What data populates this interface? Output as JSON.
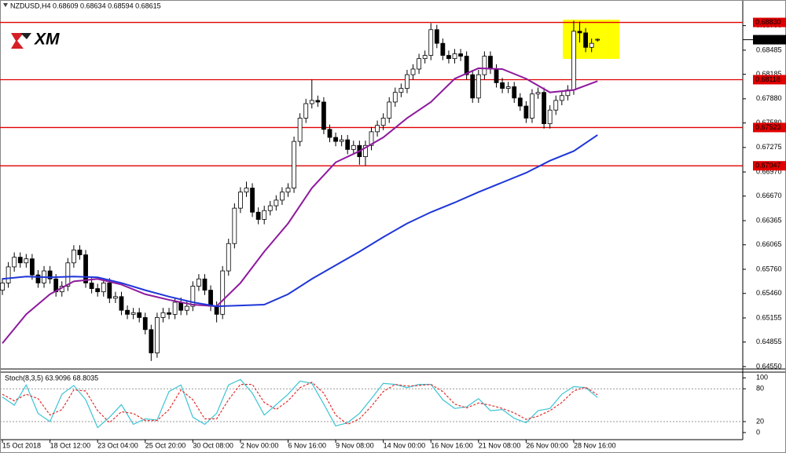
{
  "chart_data": {
    "type": "candlestick",
    "title": "NZDUSD,H4 0.68609 0.68634 0.68594 0.68615",
    "watermark": "XM",
    "up_color": "#ffffff",
    "down_color": "#000000",
    "candle_stroke": "#000000",
    "ohlc": [
      [
        0.655,
        0.6565,
        0.6544,
        0.6559
      ],
      [
        0.6559,
        0.6585,
        0.6553,
        0.6579
      ],
      [
        0.6579,
        0.6597,
        0.6573,
        0.6591
      ],
      [
        0.6591,
        0.6597,
        0.6578,
        0.6584
      ],
      [
        0.6584,
        0.6595,
        0.6578,
        0.6589
      ],
      [
        0.6589,
        0.6595,
        0.6563,
        0.6569
      ],
      [
        0.6569,
        0.6575,
        0.6553,
        0.6559
      ],
      [
        0.6559,
        0.658,
        0.6553,
        0.6574
      ],
      [
        0.6574,
        0.658,
        0.6558,
        0.6564
      ],
      [
        0.6564,
        0.657,
        0.6542,
        0.6548
      ],
      [
        0.6548,
        0.6561,
        0.6542,
        0.6555
      ],
      [
        0.6555,
        0.659,
        0.6549,
        0.6584
      ],
      [
        0.6584,
        0.6606,
        0.6578,
        0.66
      ],
      [
        0.66,
        0.6606,
        0.6588,
        0.6594
      ],
      [
        0.6594,
        0.66,
        0.6553,
        0.6559
      ],
      [
        0.6559,
        0.6565,
        0.6546,
        0.6552
      ],
      [
        0.6552,
        0.6558,
        0.6542,
        0.6548
      ],
      [
        0.6548,
        0.6565,
        0.6542,
        0.6559
      ],
      [
        0.6559,
        0.6565,
        0.6534,
        0.654
      ],
      [
        0.654,
        0.6548,
        0.6534,
        0.6542
      ],
      [
        0.6542,
        0.6548,
        0.6519,
        0.6525
      ],
      [
        0.6525,
        0.6531,
        0.6514,
        0.652
      ],
      [
        0.652,
        0.6528,
        0.6514,
        0.6522
      ],
      [
        0.6522,
        0.6528,
        0.651,
        0.6516
      ],
      [
        0.6516,
        0.6522,
        0.6495,
        0.6501
      ],
      [
        0.6501,
        0.6507,
        0.6462,
        0.6472
      ],
      [
        0.6472,
        0.6522,
        0.6466,
        0.6516
      ],
      [
        0.6516,
        0.6528,
        0.651,
        0.6522
      ],
      [
        0.6522,
        0.6528,
        0.6514,
        0.652
      ],
      [
        0.652,
        0.6541,
        0.6514,
        0.6535
      ],
      [
        0.6535,
        0.6541,
        0.6519,
        0.6525
      ],
      [
        0.6525,
        0.6536,
        0.6519,
        0.653
      ],
      [
        0.653,
        0.6561,
        0.6524,
        0.6555
      ],
      [
        0.6555,
        0.657,
        0.6549,
        0.6564
      ],
      [
        0.6564,
        0.657,
        0.6544,
        0.655
      ],
      [
        0.655,
        0.6556,
        0.6524,
        0.653
      ],
      [
        0.653,
        0.6536,
        0.651,
        0.652
      ],
      [
        0.652,
        0.658,
        0.6514,
        0.6574
      ],
      [
        0.6574,
        0.6614,
        0.6568,
        0.6608
      ],
      [
        0.6608,
        0.6658,
        0.6602,
        0.6652
      ],
      [
        0.6652,
        0.6678,
        0.6646,
        0.6672
      ],
      [
        0.6672,
        0.6685,
        0.6666,
        0.6677
      ],
      [
        0.6677,
        0.6683,
        0.6641,
        0.6647
      ],
      [
        0.6647,
        0.6653,
        0.6632,
        0.6638
      ],
      [
        0.6638,
        0.6655,
        0.6632,
        0.6649
      ],
      [
        0.6649,
        0.6661,
        0.6643,
        0.6655
      ],
      [
        0.6655,
        0.6668,
        0.6649,
        0.6662
      ],
      [
        0.6662,
        0.6678,
        0.6656,
        0.6672
      ],
      [
        0.6672,
        0.6683,
        0.6666,
        0.6677
      ],
      [
        0.6677,
        0.6741,
        0.6671,
        0.6735
      ],
      [
        0.6735,
        0.677,
        0.6729,
        0.6764
      ],
      [
        0.6764,
        0.6788,
        0.6758,
        0.6782
      ],
      [
        0.6782,
        0.6812,
        0.6776,
        0.6786
      ],
      [
        0.6786,
        0.6792,
        0.6778,
        0.6784
      ],
      [
        0.6784,
        0.679,
        0.6744,
        0.675
      ],
      [
        0.675,
        0.6756,
        0.6734,
        0.674
      ],
      [
        0.674,
        0.6746,
        0.6729,
        0.6735
      ],
      [
        0.6735,
        0.6743,
        0.6729,
        0.6737
      ],
      [
        0.6737,
        0.6743,
        0.6719,
        0.6725
      ],
      [
        0.6725,
        0.6736,
        0.6719,
        0.673
      ],
      [
        0.673,
        0.6736,
        0.6706,
        0.6716
      ],
      [
        0.6716,
        0.6736,
        0.6705,
        0.673
      ],
      [
        0.673,
        0.6753,
        0.6724,
        0.6747
      ],
      [
        0.6747,
        0.6761,
        0.6741,
        0.6755
      ],
      [
        0.6755,
        0.677,
        0.6749,
        0.6764
      ],
      [
        0.6764,
        0.679,
        0.6758,
        0.6784
      ],
      [
        0.6784,
        0.6802,
        0.6778,
        0.6796
      ],
      [
        0.6796,
        0.6807,
        0.679,
        0.6801
      ],
      [
        0.6801,
        0.6824,
        0.6795,
        0.6818
      ],
      [
        0.6818,
        0.6831,
        0.6812,
        0.6825
      ],
      [
        0.6825,
        0.6844,
        0.6819,
        0.6838
      ],
      [
        0.6838,
        0.6848,
        0.6832,
        0.6842
      ],
      [
        0.6842,
        0.6882,
        0.6836,
        0.6874
      ],
      [
        0.6874,
        0.688,
        0.6851,
        0.6857
      ],
      [
        0.6857,
        0.6863,
        0.6836,
        0.6842
      ],
      [
        0.6842,
        0.6848,
        0.6832,
        0.6838
      ],
      [
        0.6838,
        0.685,
        0.6832,
        0.6844
      ],
      [
        0.6844,
        0.685,
        0.6835,
        0.6841
      ],
      [
        0.6841,
        0.6847,
        0.6812,
        0.6818
      ],
      [
        0.6818,
        0.6824,
        0.6783,
        0.6789
      ],
      [
        0.6789,
        0.6824,
        0.6783,
        0.6818
      ],
      [
        0.6818,
        0.6847,
        0.6812,
        0.6841
      ],
      [
        0.6841,
        0.6847,
        0.6819,
        0.6825
      ],
      [
        0.6825,
        0.6831,
        0.6802,
        0.6808
      ],
      [
        0.6808,
        0.6814,
        0.6795,
        0.6801
      ],
      [
        0.6801,
        0.6809,
        0.6795,
        0.6803
      ],
      [
        0.6803,
        0.6809,
        0.6783,
        0.6789
      ],
      [
        0.6789,
        0.6795,
        0.6773,
        0.6779
      ],
      [
        0.6779,
        0.6785,
        0.6758,
        0.6764
      ],
      [
        0.6764,
        0.68,
        0.6758,
        0.6794
      ],
      [
        0.6794,
        0.6802,
        0.6788,
        0.6796
      ],
      [
        0.6796,
        0.6802,
        0.6751,
        0.6757
      ],
      [
        0.6757,
        0.678,
        0.6751,
        0.6774
      ],
      [
        0.6774,
        0.6792,
        0.6768,
        0.6786
      ],
      [
        0.6786,
        0.6798,
        0.678,
        0.6792
      ],
      [
        0.6792,
        0.6805,
        0.6786,
        0.6799
      ],
      [
        0.6799,
        0.6885,
        0.6793,
        0.6872
      ],
      [
        0.6872,
        0.6884,
        0.6858,
        0.687
      ],
      [
        0.687,
        0.6876,
        0.6846,
        0.6852
      ],
      [
        0.6852,
        0.6863,
        0.6846,
        0.6857
      ],
      [
        0.6861,
        0.6863,
        0.6859,
        0.6862
      ]
    ],
    "series": [
      {
        "color": "#8e1a9e",
        "x": [
          0,
          4,
          8,
          12,
          16,
          20,
          24,
          28,
          32,
          36,
          40,
          44,
          48,
          52,
          56,
          60,
          64,
          68,
          72,
          76,
          80,
          84,
          88,
          92,
          96,
          100
        ],
        "values": [
          0.6484,
          0.652,
          0.6545,
          0.6561,
          0.6564,
          0.6557,
          0.6545,
          0.6538,
          0.6532,
          0.653,
          0.6559,
          0.6598,
          0.6633,
          0.6677,
          0.6709,
          0.6723,
          0.674,
          0.6764,
          0.6784,
          0.6813,
          0.6826,
          0.6825,
          0.6813,
          0.6796,
          0.6799,
          0.681
        ]
      },
      {
        "color": "#1e36d8",
        "x": [
          0,
          4,
          8,
          12,
          16,
          20,
          24,
          28,
          32,
          36,
          40,
          44,
          48,
          52,
          56,
          60,
          64,
          68,
          72,
          76,
          80,
          84,
          88,
          92,
          96,
          100
        ],
        "values": [
          0.6564,
          0.6567,
          0.6566,
          0.6567,
          0.6566,
          0.6559,
          0.655,
          0.6542,
          0.6535,
          0.653,
          0.6531,
          0.6532,
          0.6545,
          0.6564,
          0.6581,
          0.6598,
          0.6616,
          0.6633,
          0.6647,
          0.6659,
          0.6672,
          0.6684,
          0.6696,
          0.6711,
          0.6723,
          0.6743
        ]
      }
    ],
    "levels": [
      {
        "value": 0.6883,
        "label": "0.68830"
      },
      {
        "value": 0.68118,
        "label": "0.68118"
      },
      {
        "value": 0.67523,
        "label": "0.67523"
      },
      {
        "value": 0.67047,
        "label": "0.67047"
      }
    ],
    "level_color": "#e00000",
    "last_price": {
      "value": 0.68615,
      "label": "0.68615"
    },
    "xlim": [
      -0.4,
      124.4
    ],
    "xticks": [
      {
        "value": 0,
        "label": "15 Oct 2018"
      },
      {
        "value": 8,
        "label": "18 Oct 12:00"
      },
      {
        "value": 16,
        "label": "23 Oct 04:00"
      },
      {
        "value": 24,
        "label": "25 Oct 20:00"
      },
      {
        "value": 32,
        "label": "30 Oct 08:00"
      },
      {
        "value": 40,
        "label": "2 Nov 00:00"
      },
      {
        "value": 48,
        "label": "6 Nov 16:00"
      },
      {
        "value": 56,
        "label": "9 Nov 08:00"
      },
      {
        "value": 64,
        "label": "14 Nov 00:00"
      },
      {
        "value": 72,
        "label": "16 Nov 16:00"
      },
      {
        "value": 80,
        "label": "21 Nov 08:00"
      },
      {
        "value": 88,
        "label": "26 Nov 00:00"
      },
      {
        "value": 96,
        "label": "28 Nov 16:00"
      }
    ],
    "ylim": [
      0.6452,
      0.6906
    ],
    "yticks": [
      {
        "value": 0.6879,
        "label": "0.68790"
      },
      0.68485,
      0.68185,
      {
        "value": 0.6788,
        "label": "0.67880"
      },
      {
        "value": 0.6758,
        "label": "0.67580"
      },
      0.67275,
      {
        "value": 0.6697,
        "label": "0.66970"
      },
      {
        "value": 0.6667,
        "label": "0.66670"
      },
      0.66365,
      0.66065,
      {
        "value": 0.6576,
        "label": "0.65760"
      },
      {
        "value": 0.6546,
        "label": "0.65460"
      },
      0.65155,
      0.64855,
      {
        "value": 0.6455,
        "label": "0.64550"
      }
    ],
    "indicator": {
      "type": "line",
      "title": "Stoch(8,3,5) 63.9096 68.8035",
      "x": [
        0,
        2,
        4,
        6,
        8,
        10,
        12,
        14,
        16,
        18,
        20,
        22,
        24,
        26,
        28,
        30,
        32,
        34,
        36,
        38,
        40,
        42,
        44,
        46,
        48,
        50,
        52,
        54,
        56,
        58,
        60,
        62,
        64,
        66,
        68,
        70,
        72,
        74,
        76,
        78,
        80,
        82,
        84,
        86,
        88,
        90,
        92,
        94,
        96,
        98,
        100
      ],
      "series": [
        {
          "color": "#3cc4d4",
          "values": [
            65,
            50,
            87,
            35,
            20,
            70,
            86,
            60,
            9,
            28,
            51,
            15,
            25,
            23,
            75,
            87,
            28,
            15,
            35,
            87,
            97,
            72,
            32,
            51,
            70,
            94,
            90,
            52,
            12,
            18,
            35,
            62,
            90,
            88,
            82,
            88,
            88,
            60,
            44,
            47,
            62,
            40,
            42,
            26,
            18,
            40,
            44,
            70,
            84,
            82,
            64
          ]
        },
        {
          "color": "#e03030",
          "dashed": true,
          "values": [
            70,
            58,
            70,
            62,
            32,
            42,
            78,
            76,
            40,
            18,
            38,
            35,
            22,
            22,
            42,
            78,
            60,
            25,
            25,
            60,
            88,
            88,
            55,
            42,
            58,
            82,
            92,
            72,
            32,
            15,
            25,
            48,
            75,
            88,
            85,
            86,
            88,
            75,
            52,
            45,
            54,
            50,
            44,
            36,
            24,
            30,
            40,
            55,
            76,
            83,
            69
          ]
        }
      ],
      "ylim": [
        -13,
        109
      ],
      "yticks": [
        100,
        80,
        20,
        0
      ],
      "levels": [
        80,
        20
      ]
    }
  }
}
